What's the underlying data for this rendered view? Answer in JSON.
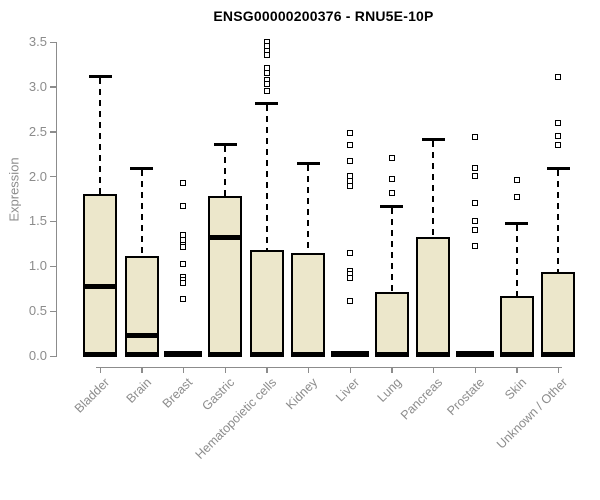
{
  "header": {
    "title": "ENSG00000200376 - RNU5E-10P"
  },
  "chart_data": {
    "type": "boxplot",
    "title": "ENSG00000200376 - RNU5E-10P",
    "xlabel": "",
    "ylabel": "Expression",
    "ylim": [
      0,
      3.5
    ],
    "grid": false,
    "legend": "none",
    "y_ticks": [
      0,
      0.5,
      1,
      1.5,
      2,
      2.5,
      3,
      3.5
    ],
    "y_tick_labels": [
      "0.0",
      "0.5",
      "1.0",
      "1.5",
      "2.0",
      "2.5",
      "3.0",
      "3.5"
    ],
    "categories": [
      "Bladder",
      "Brain",
      "Breast",
      "Gastric",
      "Hematopoietic cells",
      "Kidney",
      "Liver",
      "Lung",
      "Pancreas",
      "Prostate",
      "Skin",
      "Unknown / Other"
    ],
    "boxes": [
      {
        "label": "Bladder",
        "whisker_low": 0,
        "q1": 0,
        "median": 0.78,
        "q3": 1.79,
        "whisker_high": 3.13,
        "outliers": []
      },
      {
        "label": "Brain",
        "whisker_low": 0,
        "q1": 0,
        "median": 0.23,
        "q3": 1.1,
        "whisker_high": 2.11,
        "outliers": []
      },
      {
        "label": "Breast",
        "whisker_low": 0,
        "q1": 0,
        "median": 0.02,
        "q3": 0.02,
        "whisker_high": 0.02,
        "outliers": [
          1.93,
          1.67,
          1.35,
          1.29,
          1.24,
          1.21,
          1.03,
          0.88,
          0.85,
          0.81,
          0.64
        ]
      },
      {
        "label": "Gastric",
        "whisker_low": 0,
        "q1": 0,
        "median": 1.32,
        "q3": 1.77,
        "whisker_high": 2.37,
        "outliers": []
      },
      {
        "label": "Hematopoietic cells",
        "whisker_low": 0,
        "q1": 0,
        "median": 0.02,
        "q3": 1.17,
        "whisker_high": 2.83,
        "outliers": [
          3.5,
          3.45,
          3.4,
          3.35,
          3.21,
          3.15,
          3.08,
          3.03,
          2.95
        ]
      },
      {
        "label": "Kidney",
        "whisker_low": 0,
        "q1": 0,
        "median": 0.02,
        "q3": 1.14,
        "whisker_high": 2.16,
        "outliers": []
      },
      {
        "label": "Liver",
        "whisker_low": 0,
        "q1": 0,
        "median": 0.02,
        "q3": 0.02,
        "whisker_high": 0.02,
        "outliers": [
          2.49,
          2.35,
          2.17,
          2.01,
          1.95,
          1.9,
          1.15,
          0.95,
          0.91,
          0.87,
          0.61
        ]
      },
      {
        "label": "Lung",
        "whisker_low": 0,
        "q1": 0,
        "median": 0.02,
        "q3": 0.7,
        "whisker_high": 1.68,
        "outliers": [
          2.21,
          1.97,
          1.82
        ]
      },
      {
        "label": "Pancreas",
        "whisker_low": 0,
        "q1": 0,
        "median": 0.02,
        "q3": 1.31,
        "whisker_high": 2.43,
        "outliers": []
      },
      {
        "label": "Prostate",
        "whisker_low": 0,
        "q1": 0,
        "median": 0.02,
        "q3": 0.02,
        "whisker_high": 0.02,
        "outliers": [
          2.44,
          2.1,
          2.01,
          1.71,
          1.51,
          1.4,
          1.23
        ]
      },
      {
        "label": "Skin",
        "whisker_low": 0,
        "q1": 0,
        "median": 0.02,
        "q3": 0.66,
        "whisker_high": 1.49,
        "outliers": [
          1.96,
          1.77
        ]
      },
      {
        "label": "Unknown / Other",
        "whisker_low": 0,
        "q1": 0,
        "median": 0.02,
        "q3": 0.93,
        "whisker_high": 2.11,
        "outliers": [
          3.11,
          2.6,
          2.45,
          2.35
        ]
      }
    ],
    "colors": {
      "box_fill": "#ece7cb",
      "box_border": "#000000",
      "median": "#000000",
      "whisker": "#000000",
      "axis": "#8c8c8c",
      "title": "#000000",
      "background": "#ffffff"
    }
  }
}
